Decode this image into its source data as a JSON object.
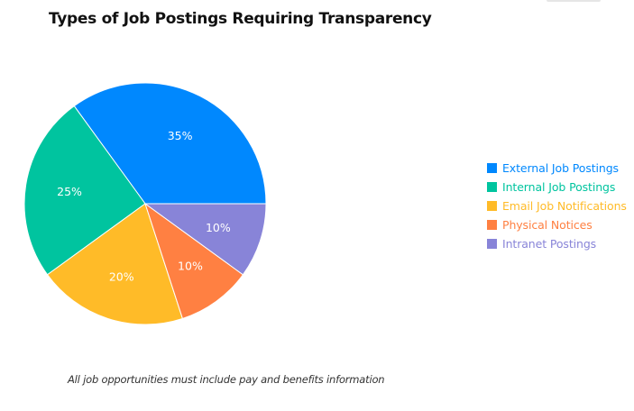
{
  "chart_data": {
    "type": "pie",
    "title": "Types of Job Postings Requiring Transparency",
    "categories": [
      "External Job Postings",
      "Internal Job Postings",
      "Email Job Notifications",
      "Physical Notices",
      "Intranet Postings"
    ],
    "values": [
      35,
      25,
      20,
      10,
      10
    ],
    "value_labels": [
      "35%",
      "25%",
      "20%",
      "10%",
      "10%"
    ],
    "colors": [
      "#0088FE",
      "#00C49F",
      "#FFBB28",
      "#FF8042",
      "#8884D8"
    ],
    "legend_position": "right",
    "annotation": "All job opportunities must include pay and benefits information"
  }
}
